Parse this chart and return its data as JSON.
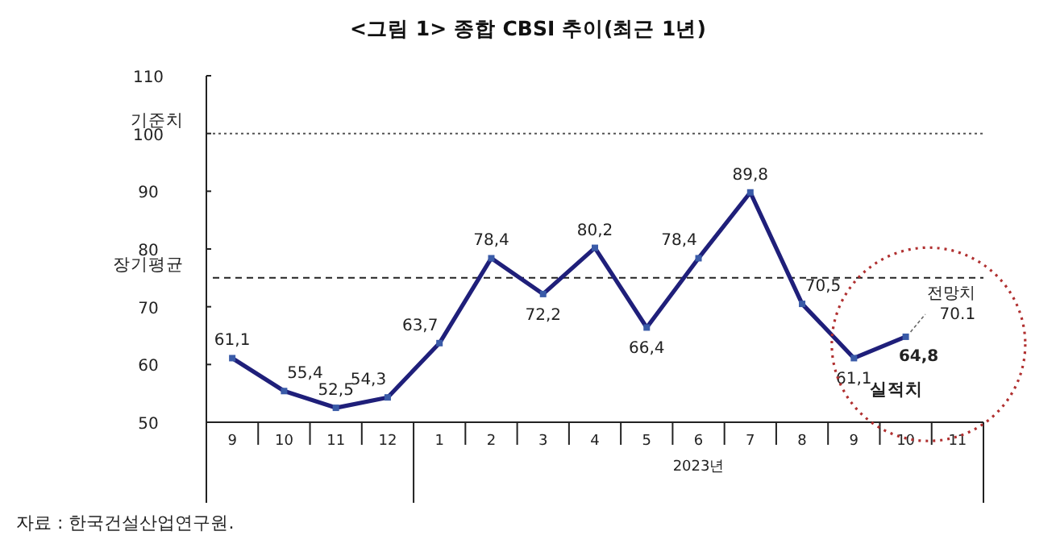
{
  "chart_data": {
    "type": "line",
    "title": "<그림 1> 종합 CBSI 추이(최근 1년)",
    "xlabel": "2023년",
    "categories": [
      "9",
      "10",
      "11",
      "12",
      "1",
      "2",
      "3",
      "4",
      "5",
      "6",
      "7",
      "8",
      "9",
      "10",
      "11"
    ],
    "series": [
      {
        "color": "#1f1f7a",
        "values": [
          61.1,
          55.4,
          52.5,
          54.3,
          63.7,
          78.4,
          72.2,
          80.2,
          66.4,
          78.4,
          89.8,
          70.5,
          61.1,
          64.8,
          null
        ],
        "value_labels": [
          "61,1",
          "55,4",
          "52,5",
          "54,3",
          "63,7",
          "78,4",
          "72,2",
          "80,2",
          "66,4",
          "78,4",
          "89,8",
          "70,5",
          "61,1",
          "64,8",
          null
        ]
      }
    ],
    "ylim": [
      50,
      110
    ],
    "yticks": [
      50,
      60,
      70,
      80,
      90,
      100,
      110
    ],
    "grid": false,
    "marker": "square",
    "line_style": "solid",
    "ref_lines": [
      {
        "axis": "y",
        "value": 100,
        "label": "기준치",
        "line_style": "dotted",
        "color": "#555555"
      },
      {
        "axis": "y",
        "value": 75,
        "label": "장기평균",
        "line_style": "dashed",
        "color": "#222222"
      }
    ],
    "annotations": [
      "전망치 70.1",
      "실적치",
      "자료 : 한국건설산업연구원."
    ]
  }
}
